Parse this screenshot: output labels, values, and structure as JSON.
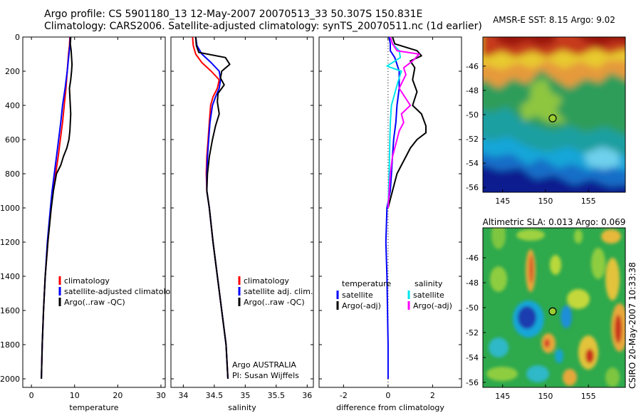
{
  "header": {
    "line1": "Argo profile: CS 5901180_13 12-May-2007 20070513_33 50.307S 150.831E",
    "line2": "Climatology: CARS2006. Satellite-adjusted climatology: synTS_20070511.nc (1d earlier)"
  },
  "colors": {
    "climatology": "#ff0000",
    "satellite": "#0000ff",
    "argo": "#000000",
    "satellite_salinity": "#00e5ee",
    "argo_adj_salinity": "#ff00ff"
  },
  "chart_data": [
    {
      "id": "temperature",
      "type": "line",
      "xlabel": "temperature",
      "ylabel": "",
      "xlim": [
        -2,
        31
      ],
      "ylim": [
        2050,
        0
      ],
      "xticks": [
        0,
        10,
        20,
        30
      ],
      "yticks": [
        0,
        200,
        400,
        600,
        800,
        1000,
        1200,
        1400,
        1600,
        1800,
        2000
      ],
      "legend": {
        "position": "lower-middle",
        "items": [
          "climatology",
          "satellite-adjusted climatology",
          "Argo(..raw -QC)"
        ]
      },
      "series": [
        {
          "name": "climatology",
          "color": "#ff0000",
          "x": [
            8.9,
            8.8,
            8.6,
            8.3,
            8.0,
            7.6,
            7.2,
            6.7,
            6.2,
            5.6,
            5.0,
            4.5,
            3.8,
            3.2,
            2.8,
            2.5,
            2.3
          ],
          "y": [
            0,
            50,
            100,
            200,
            300,
            400,
            500,
            600,
            700,
            800,
            900,
            1000,
            1200,
            1400,
            1600,
            1800,
            2000
          ]
        },
        {
          "name": "satellite-adjusted climatology",
          "color": "#0000ff",
          "x": [
            9.0,
            8.9,
            8.7,
            8.3,
            7.8,
            7.2,
            6.8,
            6.3,
            5.8,
            5.3,
            4.8,
            4.4,
            3.7,
            3.2,
            2.8,
            2.5,
            2.3
          ],
          "y": [
            0,
            50,
            100,
            200,
            300,
            400,
            500,
            600,
            700,
            800,
            900,
            1000,
            1200,
            1400,
            1600,
            1800,
            2000
          ]
        },
        {
          "name": "Argo(..raw -QC)",
          "color": "#000000",
          "x": [
            9.1,
            9.0,
            9.2,
            9.3,
            9.4,
            9.3,
            9.1,
            8.8,
            8.9,
            9.0,
            9.1,
            9.0,
            8.9,
            8.7,
            8.2,
            7.4,
            6.8,
            5.8,
            5.1,
            4.6,
            3.8,
            3.2,
            2.8,
            2.5,
            2.3
          ],
          "y": [
            0,
            40,
            80,
            120,
            160,
            200,
            250,
            300,
            350,
            400,
            450,
            500,
            550,
            600,
            650,
            700,
            750,
            800,
            900,
            1000,
            1200,
            1400,
            1600,
            1800,
            2000
          ]
        }
      ]
    },
    {
      "id": "salinity",
      "type": "line",
      "xlabel": "salinity",
      "ylabel": "",
      "xlim": [
        33.8,
        36.1
      ],
      "ylim": [
        2050,
        0
      ],
      "xticks": [
        34,
        34.5,
        35,
        35.5,
        36
      ],
      "xticklabels": [
        "34",
        "34.5",
        "35",
        "35.5",
        "36"
      ],
      "legend": {
        "position": "lower-middle",
        "items": [
          "climatology",
          "satellite adj. clim.",
          "Argo(..raw -QC)"
        ]
      },
      "annotation": [
        "Argo AUSTRALIA",
        "PI: Susan Wijffels"
      ],
      "series": [
        {
          "name": "climatology",
          "color": "#ff0000",
          "x": [
            34.15,
            34.16,
            34.2,
            34.3,
            34.45,
            34.58,
            34.55,
            34.48,
            34.44,
            34.42,
            34.4,
            34.38,
            34.37,
            34.38,
            34.42,
            34.48,
            34.55,
            34.62,
            34.69,
            34.72
          ],
          "y": [
            0,
            50,
            100,
            150,
            200,
            250,
            300,
            350,
            400,
            500,
            600,
            700,
            800,
            900,
            1000,
            1200,
            1400,
            1600,
            1800,
            2000
          ]
        },
        {
          "name": "satellite adj. clim.",
          "color": "#0000ff",
          "x": [
            34.2,
            34.22,
            34.3,
            34.45,
            34.58,
            34.6,
            34.58,
            34.52,
            34.47,
            34.43,
            34.41,
            34.39,
            34.38,
            34.38,
            34.42,
            34.48,
            34.55,
            34.62,
            34.69,
            34.72
          ],
          "y": [
            0,
            50,
            100,
            150,
            200,
            250,
            300,
            350,
            400,
            500,
            600,
            700,
            800,
            900,
            1000,
            1200,
            1400,
            1600,
            1800,
            2000
          ]
        },
        {
          "name": "Argo(..raw -QC)",
          "color": "#000000",
          "x": [
            34.2,
            34.21,
            34.25,
            34.68,
            34.75,
            34.62,
            34.6,
            34.66,
            34.56,
            34.55,
            34.58,
            34.52,
            34.47,
            34.42,
            34.39,
            34.38,
            34.42,
            34.48,
            34.55,
            34.62,
            34.69,
            34.72
          ],
          "y": [
            0,
            50,
            90,
            120,
            160,
            200,
            240,
            280,
            330,
            380,
            450,
            520,
            600,
            700,
            800,
            900,
            1000,
            1200,
            1400,
            1600,
            1800,
            2000
          ]
        }
      ]
    },
    {
      "id": "difference",
      "type": "line",
      "xlabel": "difference from climatology",
      "ylabel": "",
      "xlim": [
        -3.1,
        3.3
      ],
      "ylim": [
        2050,
        0
      ],
      "xticks": [
        -2,
        0,
        2
      ],
      "reference_line_x": 0,
      "legend": {
        "position": "lower-middle",
        "groups": [
          {
            "title": "temperature",
            "items": [
              "satellite",
              "Argo(-adj)"
            ]
          },
          {
            "title": "salinity",
            "items": [
              "satellite",
              "Argo(-adj)"
            ]
          }
        ]
      },
      "series": [
        {
          "name": "temperature satellite",
          "color": "#0000ff",
          "x": [
            0.05,
            0.1,
            0.1,
            0.3,
            0.4,
            0.5,
            0.5,
            0.4,
            0.35,
            0.25,
            0.2,
            0.15,
            0.1,
            -0.05,
            -0.1,
            -0.05,
            0.0,
            0.0
          ],
          "y": [
            0,
            40,
            80,
            120,
            160,
            200,
            300,
            400,
            500,
            600,
            700,
            800,
            900,
            1000,
            1200,
            1400,
            1800,
            2000
          ]
        },
        {
          "name": "temperature Argo(-adj)",
          "color": "#000000",
          "x": [
            0.2,
            0.3,
            1.3,
            1.5,
            1.0,
            1.2,
            1.1,
            1.3,
            1.1,
            1.5,
            1.7,
            1.7,
            1.3,
            1.0,
            0.8,
            0.6,
            0.4,
            0.2,
            0.0
          ],
          "y": [
            0,
            40,
            80,
            110,
            140,
            180,
            250,
            320,
            400,
            450,
            520,
            560,
            600,
            650,
            700,
            750,
            800,
            900,
            1000
          ]
        },
        {
          "name": "salinity satellite",
          "color": "#00e5ee",
          "x": [
            0.1,
            0.2,
            0.5,
            0.55,
            -0.05,
            0.6,
            0.45,
            0.15,
            0.1,
            0.08,
            0.05,
            0.0
          ],
          "y": [
            0,
            40,
            80,
            120,
            170,
            200,
            260,
            400,
            500,
            600,
            800,
            1000
          ]
        },
        {
          "name": "salinity Argo(-adj)",
          "color": "#ff00ff",
          "x": [
            0.1,
            0.2,
            0.4,
            1.4,
            1.1,
            0.7,
            0.8,
            0.5,
            1.0,
            0.6,
            0.7,
            0.5,
            0.4,
            0.2,
            0.1,
            0.0
          ],
          "y": [
            0,
            40,
            80,
            100,
            140,
            180,
            220,
            300,
            400,
            450,
            500,
            550,
            600,
            700,
            800,
            1000
          ]
        }
      ]
    }
  ],
  "maps": [
    {
      "id": "sst-map",
      "title": "AMSR-E SST: 8.15 Argo: 9.02",
      "xticks": [
        145,
        150,
        155
      ],
      "yticks": [
        -46,
        -48,
        -50,
        -52,
        -54,
        -56
      ],
      "xlim": [
        142.7,
        159.3
      ],
      "ylim": [
        -56.4,
        -43.6
      ],
      "marker": {
        "lon": 150.83,
        "lat": -50.3
      }
    },
    {
      "id": "sla-map",
      "title": "Altimetric SLA: 0.013 Argo: 0.069",
      "xticks": [
        145,
        150,
        155
      ],
      "yticks": [
        -46,
        -48,
        -50,
        -52,
        -54,
        -56
      ],
      "xlim": [
        142.7,
        159.3
      ],
      "ylim": [
        -56.4,
        -43.6
      ],
      "marker": {
        "lon": 150.83,
        "lat": -50.3
      }
    }
  ],
  "footer_stamp": "CSIRO 20-May-2007 10:33:38"
}
